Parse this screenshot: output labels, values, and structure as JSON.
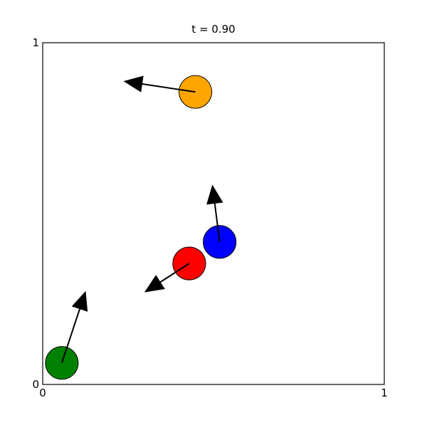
{
  "chart_data": {
    "type": "scatter",
    "title": "t = 0.90",
    "xlabel": "",
    "ylabel": "",
    "xlim": [
      0,
      1
    ],
    "ylim": [
      0,
      1
    ],
    "x_ticks": [
      "0",
      "1"
    ],
    "y_ticks": [
      "0",
      "1"
    ],
    "grid": false,
    "radius": 0.048,
    "particles": [
      {
        "name": "orange",
        "color": "#FFA500",
        "x": 0.447,
        "y": 0.856,
        "vx": -0.208,
        "vy": 0.031
      },
      {
        "name": "blue",
        "color": "#0000FF",
        "x": 0.518,
        "y": 0.417,
        "vx": -0.021,
        "vy": 0.165
      },
      {
        "name": "red",
        "color": "#FF0000",
        "x": 0.429,
        "y": 0.354,
        "vx": -0.129,
        "vy": -0.083
      },
      {
        "name": "green",
        "color": "#008000",
        "x": 0.056,
        "y": 0.063,
        "vx": 0.069,
        "vy": 0.208
      }
    ]
  }
}
